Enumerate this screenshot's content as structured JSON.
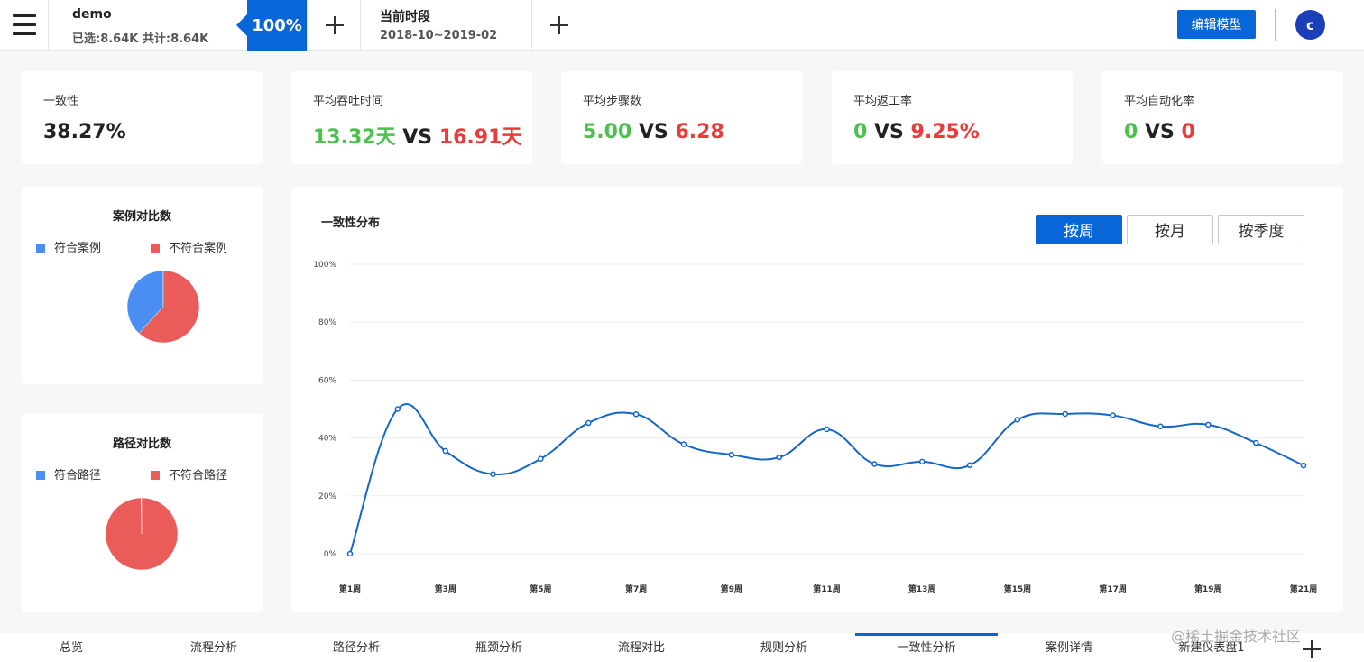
{
  "topbar": {
    "dataset_name": "demo",
    "dataset_stats": "已选:8.64K 共计:8.64K",
    "percent": "100%",
    "period_title": "当前时段",
    "period_range": "2018-10~2019-02",
    "edit_label": "编辑模型",
    "avatar_initial": "c"
  },
  "kpis": [
    {
      "label": "一致性",
      "value": "38.27%"
    },
    {
      "label": "平均吞吐时间",
      "value_a": "13.32天",
      "vs": "VS",
      "value_b": "16.91天"
    },
    {
      "label": "平均步骤数",
      "value_a": "5.00",
      "vs": "VS",
      "value_b": "6.28"
    },
    {
      "label": "平均返工率",
      "value_a": "0",
      "vs": "VS",
      "value_b": "9.25%"
    },
    {
      "label": "平均自动化率",
      "value_a": "0",
      "vs": "VS",
      "value_b": "0"
    }
  ],
  "pies": [
    {
      "title": "案例对比数",
      "legend": [
        "符合案例",
        "不符合案例"
      ],
      "colors": [
        "#4a8ef2",
        "#ea5c5a"
      ],
      "values": [
        38.27,
        61.73
      ]
    },
    {
      "title": "路径对比数",
      "legend": [
        "符合路径",
        "不符合路径"
      ],
      "colors": [
        "#4a8ef2",
        "#ea5c5a"
      ],
      "values": [
        0.3,
        99.7
      ]
    }
  ],
  "line_chart": {
    "title": "一致性分布",
    "buttons": [
      "按周",
      "按月",
      "按季度"
    ],
    "active_button": "按周"
  },
  "chart_data": {
    "type": "line",
    "title": "一致性分布",
    "xlabel": "",
    "ylabel": "",
    "categories": [
      "第1周",
      "第2周",
      "第3周",
      "第4周",
      "第5周",
      "第6周",
      "第7周",
      "第8周",
      "第9周",
      "第10周",
      "第11周",
      "第12周",
      "第13周",
      "第14周",
      "第15周",
      "第16周",
      "第17周",
      "第18周",
      "第19周",
      "第20周",
      "第21周"
    ],
    "shown_tick_labels": [
      "第1周",
      "第3周",
      "第5周",
      "第7周",
      "第9周",
      "第11周",
      "第13周",
      "第15周",
      "第17周",
      "第19周",
      "第21周"
    ],
    "series": [
      {
        "values": [
          0,
          50,
          35.5,
          27.5,
          32.8,
          45.2,
          48.2,
          37.8,
          34.2,
          33.3,
          43,
          31,
          31.8,
          30.6,
          46.3,
          48.3,
          47.8,
          44,
          44.6,
          38.3,
          30.5
        ]
      }
    ],
    "ylim": [
      0,
      100
    ],
    "yticks": [
      "0%",
      "20%",
      "40%",
      "60%",
      "80%",
      "100%"
    ],
    "grid": true,
    "color": "#1467c9"
  },
  "bottom_tabs": [
    "总览",
    "流程分析",
    "路径分析",
    "瓶颈分析",
    "流程对比",
    "规则分析",
    "一致性分析",
    "案例详情",
    "新建仪表盘1"
  ],
  "active_tab": "一致性分析",
  "watermark": "@稀土掘金技术社区"
}
